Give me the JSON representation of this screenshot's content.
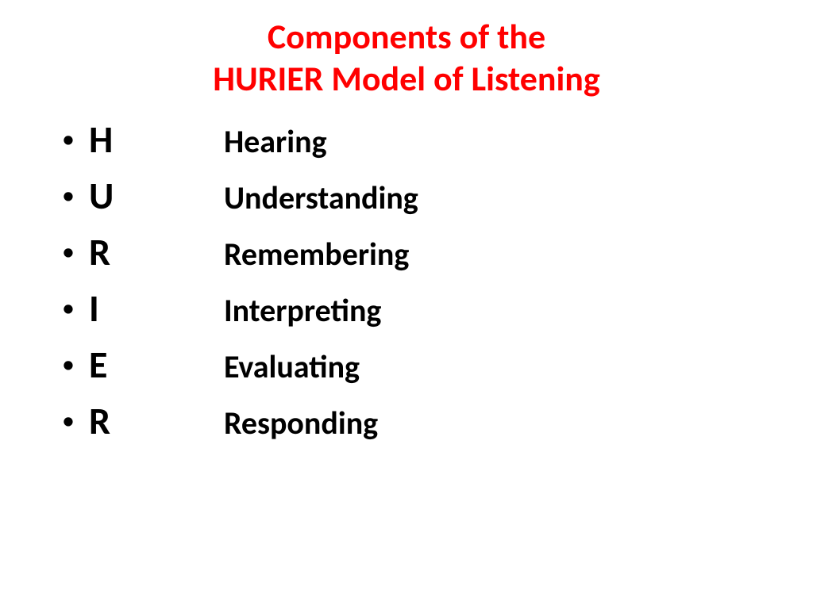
{
  "title": {
    "line1": "Components of the",
    "line2": "HURIER Model of Listening",
    "color": "#ff0000",
    "font_size": 44,
    "font_weight": "bold"
  },
  "items": [
    {
      "letter": "H",
      "word": "Hearing"
    },
    {
      "letter": "U",
      "word": "Understanding"
    },
    {
      "letter": "R",
      "word": "Remembering"
    },
    {
      "letter": "I",
      "word": "Interpreting"
    },
    {
      "letter": "E",
      "word": "Evaluating"
    },
    {
      "letter": "R",
      "word": "Responding"
    }
  ],
  "list_style": {
    "letter_font_size": 48,
    "word_font_size": 40,
    "text_color": "#000000",
    "font_weight": "bold",
    "bullet_char": "•"
  },
  "background_color": "#ffffff"
}
